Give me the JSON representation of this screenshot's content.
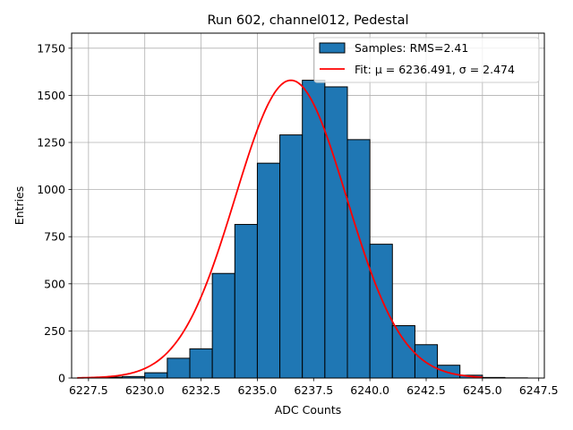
{
  "chart_data": {
    "type": "bar",
    "title": "Run 602, channel012, Pedestal",
    "xlabel": "ADC Counts",
    "ylabel": "Entries",
    "xlim": [
      6226.75,
      6247.75
    ],
    "ylim": [
      0,
      1830
    ],
    "grid": true,
    "legend_position": "top-right",
    "x_ticks": [
      6227.5,
      6230.0,
      6232.5,
      6235.0,
      6237.5,
      6240.0,
      6242.5,
      6245.0,
      6247.5
    ],
    "x_tick_labels": [
      "6227.5",
      "6230.0",
      "6232.5",
      "6235.0",
      "6237.5",
      "6240.0",
      "6242.5",
      "6245.0",
      "6247.5"
    ],
    "y_ticks": [
      0,
      250,
      500,
      750,
      1000,
      1250,
      1500,
      1750
    ],
    "y_tick_labels": [
      "0",
      "250",
      "500",
      "750",
      "1000",
      "1250",
      "1500",
      "1750"
    ],
    "bin_edges": [
      6228,
      6229,
      6230,
      6231,
      6232,
      6233,
      6234,
      6235,
      6236,
      6237,
      6238,
      6239,
      6240,
      6241,
      6242,
      6243,
      6244,
      6245,
      6246,
      6247
    ],
    "values": [
      5,
      8,
      28,
      105,
      155,
      555,
      815,
      1140,
      1290,
      1580,
      1545,
      1265,
      710,
      278,
      177,
      68,
      15,
      3,
      1
    ],
    "series": [
      {
        "name": "Samples: RMS=2.41",
        "kind": "histogram",
        "color": "#1f77b4",
        "edge_color": "#000000"
      },
      {
        "name": "Fit: μ = 6236.491, σ = 2.474",
        "kind": "gaussian-fit",
        "mu": 6236.491,
        "sigma": 2.474,
        "amplitude": 1580,
        "x_range": [
          6227,
          6245
        ],
        "color": "#ff0000"
      }
    ]
  }
}
